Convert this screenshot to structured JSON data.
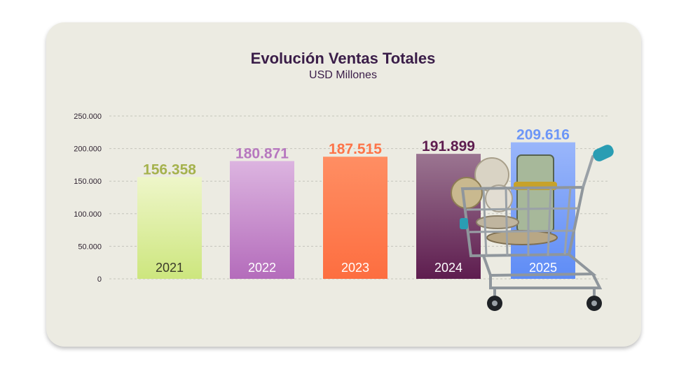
{
  "chart_data": {
    "type": "bar",
    "title": "Evolución Ventas Totales",
    "subtitle": "USD Millones",
    "categories": [
      "2021",
      "2022",
      "2023",
      "2024",
      "2025"
    ],
    "values": [
      156358,
      180871,
      187515,
      191899,
      209616
    ],
    "value_labels": [
      "156.358",
      "180.871",
      "187.515",
      "191.899",
      "209.616"
    ],
    "bar_colors": [
      "#d6e88c",
      "#b778bf",
      "#fd7448",
      "#5e1d4f",
      "#6c96f7"
    ],
    "label_colors": [
      "#a5b24d",
      "#b778bf",
      "#fd7448",
      "#5e1d4f",
      "#6c96f7"
    ],
    "yticks": [
      0,
      50000,
      100000,
      150000,
      200000,
      250000
    ],
    "ytick_labels": [
      "0",
      "50.000",
      "100.000",
      "150.000",
      "200.000",
      "250.000"
    ],
    "ylim": [
      0,
      250000
    ],
    "grid": true,
    "xlabel": "",
    "ylabel": ""
  },
  "decoration": {
    "image": "shopping-cart-with-money"
  }
}
